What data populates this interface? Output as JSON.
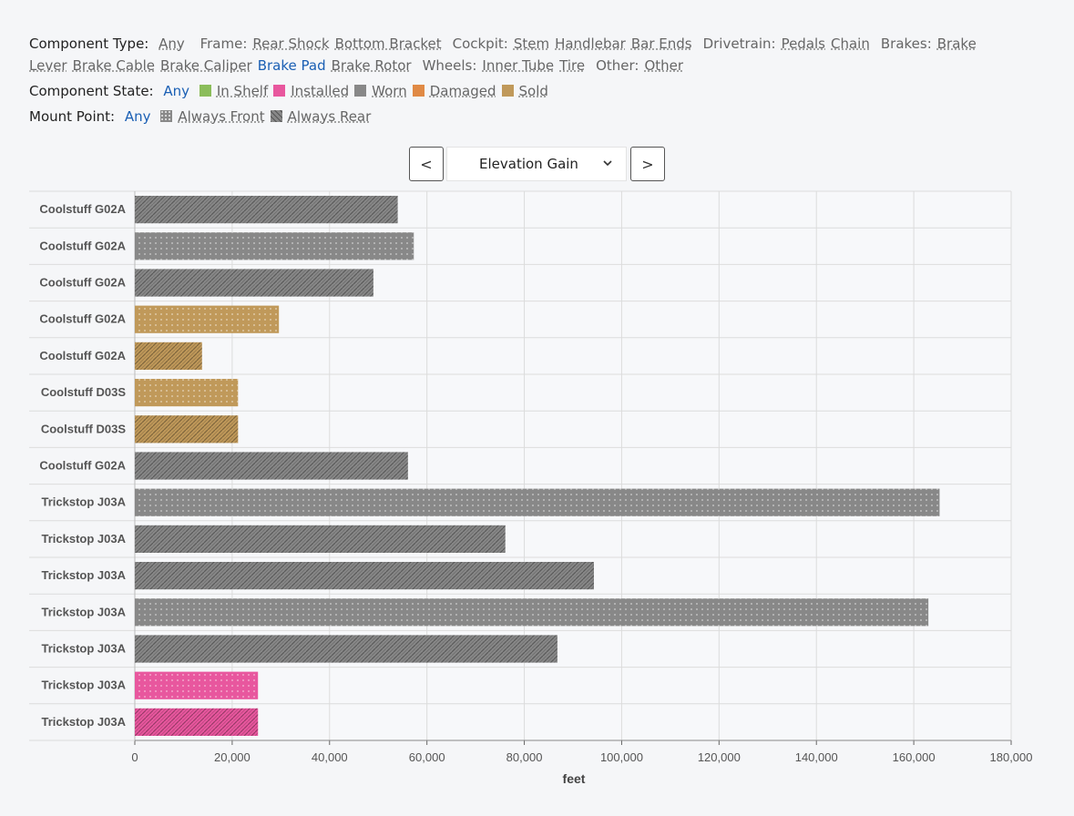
{
  "filters": {
    "component_type": {
      "label": "Component Type:",
      "any": "Any",
      "groups": [
        {
          "label": "Frame:",
          "options": [
            "Rear Shock",
            "Bottom Bracket"
          ]
        },
        {
          "label": "Cockpit:",
          "options": [
            "Stem",
            "Handlebar",
            "Bar Ends"
          ]
        },
        {
          "label": "Drivetrain:",
          "options": [
            "Pedals",
            "Chain"
          ]
        },
        {
          "label": "Brakes:",
          "options": [
            "Brake Lever",
            "Brake Cable",
            "Brake Caliper",
            "Brake Pad",
            "Brake Rotor"
          ]
        },
        {
          "label": "Wheels:",
          "options": [
            "Inner Tube",
            "Tire"
          ]
        },
        {
          "label": "Other:",
          "options": [
            "Other"
          ]
        }
      ],
      "active": "Brake Pad"
    },
    "component_state": {
      "label": "Component State:",
      "any": "Any",
      "options": [
        {
          "label": "In Shelf",
          "color": "#8bbd5a"
        },
        {
          "label": "Installed",
          "color": "#e8579e"
        },
        {
          "label": "Worn",
          "color": "#888888"
        },
        {
          "label": "Damaged",
          "color": "#e08a45"
        },
        {
          "label": "Sold",
          "color": "#c0995a"
        }
      ]
    },
    "mount_point": {
      "label": "Mount Point:",
      "any": "Any",
      "options": [
        {
          "label": "Always Front",
          "pattern": "dots"
        },
        {
          "label": "Always Rear",
          "pattern": "diagonal"
        }
      ]
    }
  },
  "navigator": {
    "prev": "<",
    "next": ">",
    "selected": "Elevation Gain"
  },
  "chart_data": {
    "type": "bar",
    "orientation": "horizontal",
    "xlabel": "feet",
    "xlim": [
      0,
      180000
    ],
    "xticks": [
      0,
      20000,
      40000,
      60000,
      80000,
      100000,
      120000,
      140000,
      160000,
      180000
    ],
    "xtick_labels": [
      "0",
      "20,000",
      "40,000",
      "60,000",
      "80,000",
      "100,000",
      "120,000",
      "140,000",
      "160,000",
      "180,000"
    ],
    "grid": true,
    "categories": [
      "Coolstuff G02A",
      "Coolstuff G02A",
      "Coolstuff G02A",
      "Coolstuff G02A",
      "Coolstuff G02A",
      "Coolstuff D03S",
      "Coolstuff D03S",
      "Coolstuff G02A",
      "Trickstop J03A",
      "Trickstop J03A",
      "Trickstop J03A",
      "Trickstop J03A",
      "Trickstop J03A",
      "Trickstop J03A",
      "Trickstop J03A"
    ],
    "values": [
      54000,
      57300,
      49000,
      29600,
      13800,
      21200,
      21200,
      56100,
      165300,
      76100,
      94300,
      163000,
      86800,
      25300,
      25300
    ],
    "states": [
      "Worn",
      "Worn",
      "Worn",
      "Sold",
      "Sold",
      "Sold",
      "Sold",
      "Worn",
      "Worn",
      "Worn",
      "Worn",
      "Worn",
      "Worn",
      "Installed",
      "Installed"
    ],
    "mounts": [
      "Always Rear",
      "Always Front",
      "Always Rear",
      "Always Front",
      "Always Rear",
      "Always Front",
      "Always Rear",
      "Always Rear",
      "Always Front",
      "Always Rear",
      "Always Rear",
      "Always Front",
      "Always Rear",
      "Always Front",
      "Always Rear"
    ]
  }
}
